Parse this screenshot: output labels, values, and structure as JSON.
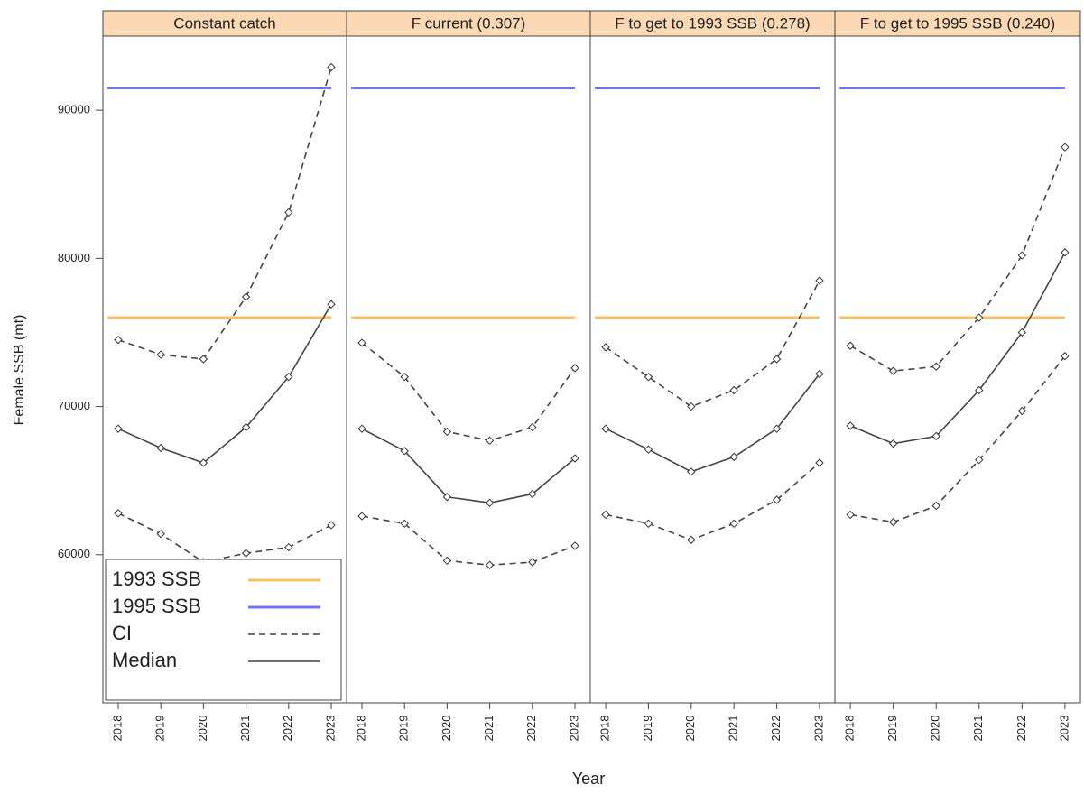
{
  "chart_data": {
    "type": "line",
    "ylabel": "Female SSB (mt)",
    "xlabel": "Year",
    "ylim": [
      50000,
      95000
    ],
    "yticks": [
      60000,
      70000,
      80000,
      90000
    ],
    "xlim": [
      2017.64,
      2023.36
    ],
    "x": [
      2018,
      2019,
      2020,
      2021,
      2022,
      2023
    ],
    "legend": "bottom-left",
    "strip_color": "#fcd9b4",
    "reference_lines": [
      {
        "name": "1993 SSB",
        "color": "#f7c164",
        "value": 76000
      },
      {
        "name": "1995 SSB",
        "color": "#7272f7",
        "value": 91500
      }
    ],
    "ci_name": "CI",
    "median_name": "Median",
    "line_color": "#444444",
    "panels": [
      {
        "title": "Constant catch",
        "ci_upper": [
          74500,
          73500,
          73200,
          77400,
          83100,
          92900
        ],
        "median": [
          68500,
          67200,
          66200,
          68600,
          72000,
          76900
        ],
        "ci_lower": [
          62800,
          61400,
          59500,
          60100,
          60500,
          62000
        ]
      },
      {
        "title": "F current (0.307)",
        "ci_upper": [
          74300,
          72000,
          68300,
          67700,
          68600,
          72600
        ],
        "median": [
          68500,
          67000,
          63900,
          63500,
          64100,
          66500
        ],
        "ci_lower": [
          62600,
          62100,
          59600,
          59300,
          59500,
          60600
        ]
      },
      {
        "title": "F to get to 1993 SSB (0.278)",
        "ci_upper": [
          74000,
          72000,
          70000,
          71100,
          73200,
          78500
        ],
        "median": [
          68500,
          67100,
          65600,
          66600,
          68500,
          72200
        ],
        "ci_lower": [
          62700,
          62100,
          61000,
          62100,
          63700,
          66200
        ]
      },
      {
        "title": "F to get to 1995 SSB (0.240)",
        "ci_upper": [
          74100,
          72400,
          72700,
          76000,
          80200,
          87500
        ],
        "median": [
          68700,
          67500,
          68000,
          71100,
          75000,
          80400
        ],
        "ci_lower": [
          62700,
          62200,
          63300,
          66400,
          69700,
          73400
        ]
      }
    ]
  }
}
